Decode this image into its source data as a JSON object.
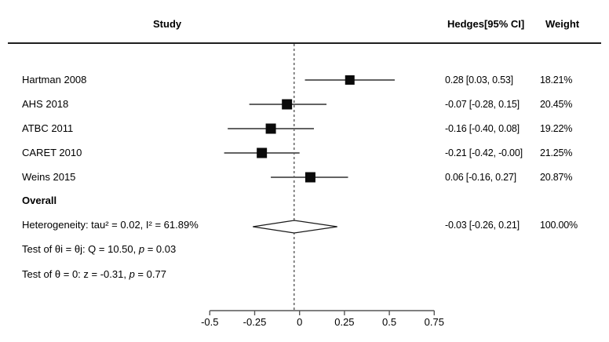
{
  "header": {
    "study": "Study",
    "effect": "Hedges[95% CI]",
    "weight": "Weight"
  },
  "chart_data": {
    "type": "forest",
    "effect_measure": "Hedges [95% CI]",
    "studies": [
      {
        "label": "Hartman 2008",
        "est": 0.28,
        "lo": 0.03,
        "hi": 0.53,
        "effect_text": "0.28 [0.03, 0.53]",
        "weight_text": "18.21%",
        "weight_pct": 18.21
      },
      {
        "label": "AHS 2018",
        "est": -0.07,
        "lo": -0.28,
        "hi": 0.15,
        "effect_text": "-0.07 [-0.28, 0.15]",
        "weight_text": "20.45%",
        "weight_pct": 20.45
      },
      {
        "label": "ATBC 2011",
        "est": -0.16,
        "lo": -0.4,
        "hi": 0.08,
        "effect_text": "-0.16 [-0.40, 0.08]",
        "weight_text": "19.22%",
        "weight_pct": 19.22
      },
      {
        "label": "CARET 2010",
        "est": -0.21,
        "lo": -0.42,
        "hi": -0.0,
        "effect_text": "-0.21 [-0.42, -0.00]",
        "weight_text": "21.25%",
        "weight_pct": 21.25
      },
      {
        "label": "Weins 2015",
        "est": 0.06,
        "lo": -0.16,
        "hi": 0.27,
        "effect_text": "0.06 [-0.16, 0.27]",
        "weight_text": "20.87%",
        "weight_pct": 20.87
      }
    ],
    "overall": {
      "label": "Overall",
      "est": -0.03,
      "lo": -0.26,
      "hi": 0.21,
      "effect_text": "-0.03 [-0.26, 0.21]",
      "weight_text": "100.00%"
    },
    "notes": [
      [
        {
          "text": "Heterogeneity: tau² = 0.02, I² = 61.89%"
        }
      ],
      [
        {
          "text": "Test of θi = θj: Q = 10.50, "
        },
        {
          "text": "p",
          "italic": true
        },
        {
          "text": " = 0.03"
        }
      ],
      [
        {
          "text": "Test of θ = 0: z = -0.31, "
        },
        {
          "text": "p",
          "italic": true
        },
        {
          "text": " = 0.77"
        }
      ]
    ],
    "axis": {
      "tick_values": [
        -0.5,
        -0.25,
        0,
        0.25,
        0.5,
        0.75
      ],
      "tick_labels": [
        "-0.5",
        "-0.25",
        "0",
        "0.25",
        "0.5",
        "0.75"
      ],
      "xlim": [
        -0.5,
        0.75
      ]
    },
    "ref_line_value": -0.03
  },
  "colors": {
    "text": "#000000",
    "ci_line": "#636363",
    "marker": "#0a0a0a",
    "diamond_fill": "#ffffff",
    "diamond_outline": "#1a1a1a",
    "axis": "#565656",
    "ref_line": "#1a1a1a"
  }
}
